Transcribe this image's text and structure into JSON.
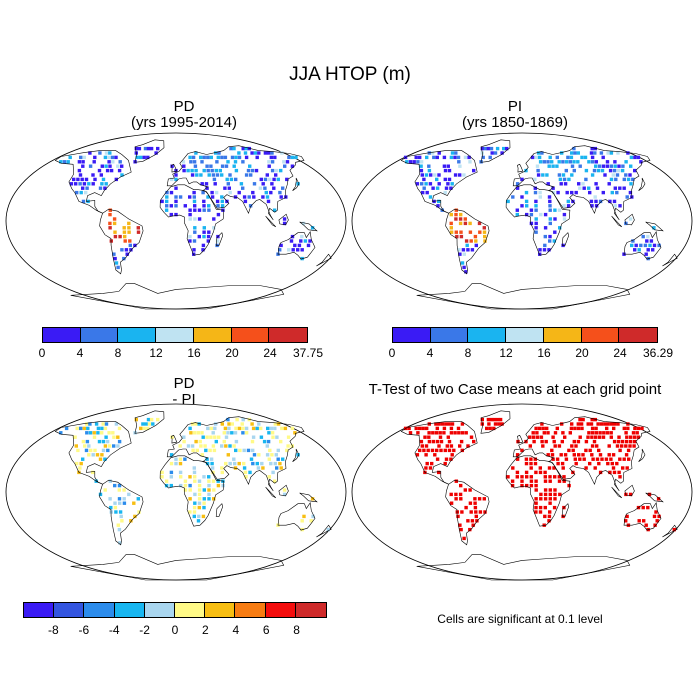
{
  "title": "JJA HTOP (m)",
  "panels": [
    {
      "title": "PD",
      "subtitle": "(yrs 1995-2014)",
      "kind": "abs",
      "seed": 11
    },
    {
      "title": "PI",
      "subtitle": "(yrs 1850-1869)",
      "kind": "abs",
      "seed": 23
    },
    {
      "title": "PD",
      "subtitle": "- PI",
      "kind": "diff",
      "seed": 37
    },
    {
      "title": "T-Test of two Case means at each grid point",
      "subtitle": "",
      "kind": "sig",
      "seed": 51
    }
  ],
  "colorbars": [
    {
      "colors": [
        "#3a1bf5",
        "#3a78e8",
        "#1ab4f0",
        "#bfe3f2",
        "#f5b617",
        "#f5501b",
        "#cf2a2a"
      ],
      "labels": [
        "0",
        "4",
        "8",
        "12",
        "16",
        "20",
        "24",
        "37.75"
      ]
    },
    {
      "colors": [
        "#3a1bf5",
        "#3a78e8",
        "#1ab4f0",
        "#bfe3f2",
        "#f5b617",
        "#f5501b",
        "#cf2a2a"
      ],
      "labels": [
        "0",
        "4",
        "8",
        "12",
        "16",
        "20",
        "24",
        "36.29"
      ]
    },
    {
      "colors": [
        "#3a1bf5",
        "#3355e0",
        "#2c8cec",
        "#18b6f0",
        "#a9d6ef",
        "#fffa87",
        "#f7be12",
        "#f77c12",
        "#f40d0d",
        "#cf2a2a"
      ],
      "labels": [
        "-8",
        "-6",
        "-4",
        "-2",
        "0",
        "2",
        "4",
        "6",
        "8"
      ]
    }
  ],
  "note": "Cells are significant at 0.1 level",
  "colors": {
    "sig": "#ee0000",
    "coast": "#000000",
    "frame": "#000000"
  }
}
